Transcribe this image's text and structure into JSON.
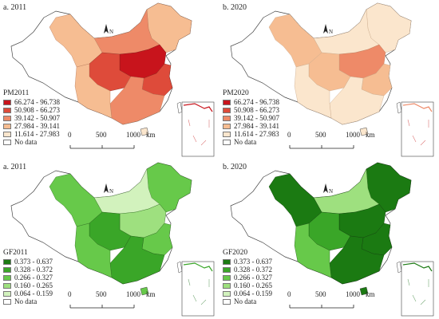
{
  "panels": [
    {
      "title": "a. 2011",
      "legend_title": "PM2011",
      "legend": [
        {
          "label": "66.274 - 96.738",
          "color": "#c8141c"
        },
        {
          "label": "50.908 - 66.273",
          "color": "#de4b3a"
        },
        {
          "label": "39.142 - 50.907",
          "color": "#ee8a68"
        },
        {
          "label": "27.984 - 39.141",
          "color": "#f6bd92"
        },
        {
          "label": "11.614 - 27.983",
          "color": "#fbe6cd"
        },
        {
          "label": "No data",
          "color": "#ffffff"
        }
      ]
    },
    {
      "title": "b. 2020",
      "legend_title": "PM2020",
      "legend": [
        {
          "label": "66.274 - 96.738",
          "color": "#c8141c"
        },
        {
          "label": "50.908 - 66.273",
          "color": "#de4b3a"
        },
        {
          "label": "39.142 - 50.907",
          "color": "#ee8a68"
        },
        {
          "label": "27.984 - 39.141",
          "color": "#f6bd92"
        },
        {
          "label": "11.614 - 27.983",
          "color": "#fbe6cd"
        },
        {
          "label": "No data",
          "color": "#ffffff"
        }
      ]
    },
    {
      "title": "a. 2011",
      "legend_title": "GF2011",
      "legend": [
        {
          "label": "0.373 - 0.637",
          "color": "#1b7a12"
        },
        {
          "label": "0.328 - 0.372",
          "color": "#3aa628"
        },
        {
          "label": "0.266 - 0.327",
          "color": "#67c94a"
        },
        {
          "label": "0.160 - 0.265",
          "color": "#9ee07f"
        },
        {
          "label": "0.064 - 0.159",
          "color": "#d2f2bd"
        },
        {
          "label": "No data",
          "color": "#ffffff"
        }
      ]
    },
    {
      "title": "b. 2020",
      "legend_title": "GF2020",
      "legend": [
        {
          "label": "0.373 - 0.637",
          "color": "#1b7a12"
        },
        {
          "label": "0.328 - 0.372",
          "color": "#3aa628"
        },
        {
          "label": "0.266 - 0.327",
          "color": "#67c94a"
        },
        {
          "label": "0.160 - 0.265",
          "color": "#9ee07f"
        },
        {
          "label": "0.064 - 0.159",
          "color": "#d2f2bd"
        },
        {
          "label": "No data",
          "color": "#ffffff"
        }
      ]
    }
  ],
  "north_label": "N",
  "scale": {
    "ticks": [
      "0",
      "500",
      "1000"
    ],
    "unit": "km"
  }
}
